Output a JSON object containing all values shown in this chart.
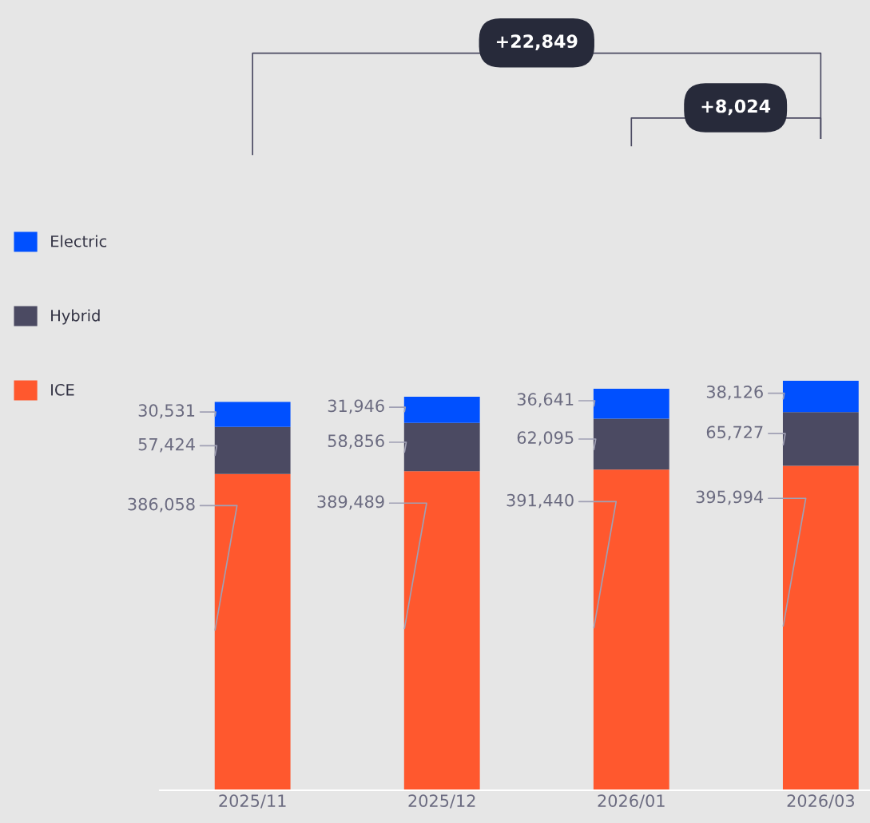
{
  "chart_data": {
    "type": "bar",
    "stacked": true,
    "legend": "left",
    "categories": [
      "2025/11",
      "2025/12",
      "2026/01",
      "2026/03"
    ],
    "series": [
      {
        "name": "ICE",
        "color": "#ff582e",
        "values": [
          386058,
          389489,
          391440,
          395994
        ],
        "value_labels": [
          "386,058",
          "389,489",
          "391,440",
          "395,994"
        ]
      },
      {
        "name": "Hybrid",
        "color": "#4b4a62",
        "values": [
          57424,
          58856,
          62095,
          65727
        ],
        "value_labels": [
          "57,424",
          "58,856",
          "62,095",
          "65,727"
        ]
      },
      {
        "name": "Electric",
        "color": "#0050ff",
        "values": [
          30531,
          31946,
          36641,
          38126
        ],
        "value_labels": [
          "30,531",
          "31,946",
          "36,641",
          "38,126"
        ]
      }
    ],
    "annotations": [
      "+22,849",
      "+8,024"
    ]
  }
}
